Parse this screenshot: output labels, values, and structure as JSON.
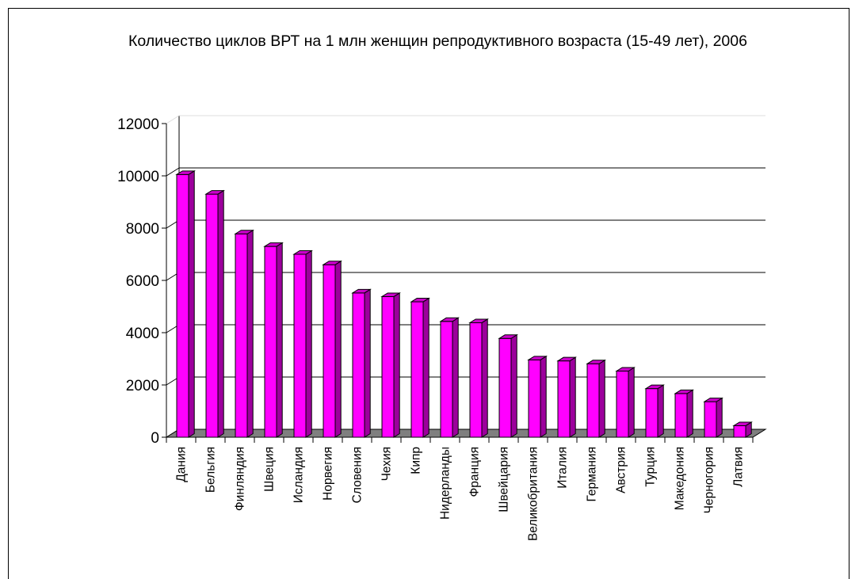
{
  "colors": {
    "bar_front": "#ff00ff",
    "bar_side": "#9c009c",
    "bar_top": "#cc00cc",
    "floor": "#7f7f7f",
    "grid": "#000000",
    "outline": "#000000"
  },
  "chart_data": {
    "type": "bar",
    "title": "Количество циклов ВРТ на 1 млн женщин репродуктивного возраста (15-49 лет), 2006",
    "xlabel": "",
    "ylabel": "",
    "ylim": [
      0,
      12000
    ],
    "yticks": [
      "0",
      "2000",
      "4000",
      "6000",
      "8000",
      "10000",
      "12000"
    ],
    "grid": true,
    "legend": "none",
    "categories": [
      "Дания",
      "Бельгия",
      "Финляндия",
      "Швеция",
      "Исландия",
      "Норвегия",
      "Словения",
      "Чехия",
      "Кипр",
      "Нидерланды",
      "Франция",
      "Швейцария",
      "Великобритания",
      "Италия",
      "Германия",
      "Австрия",
      "Турция",
      "Македония",
      "Черногория",
      "Латвия"
    ],
    "values": [
      10050,
      9300,
      7780,
      7300,
      7000,
      6600,
      5520,
      5380,
      5180,
      4430,
      4380,
      3780,
      2960,
      2920,
      2810,
      2530,
      1860,
      1670,
      1360,
      440
    ]
  }
}
